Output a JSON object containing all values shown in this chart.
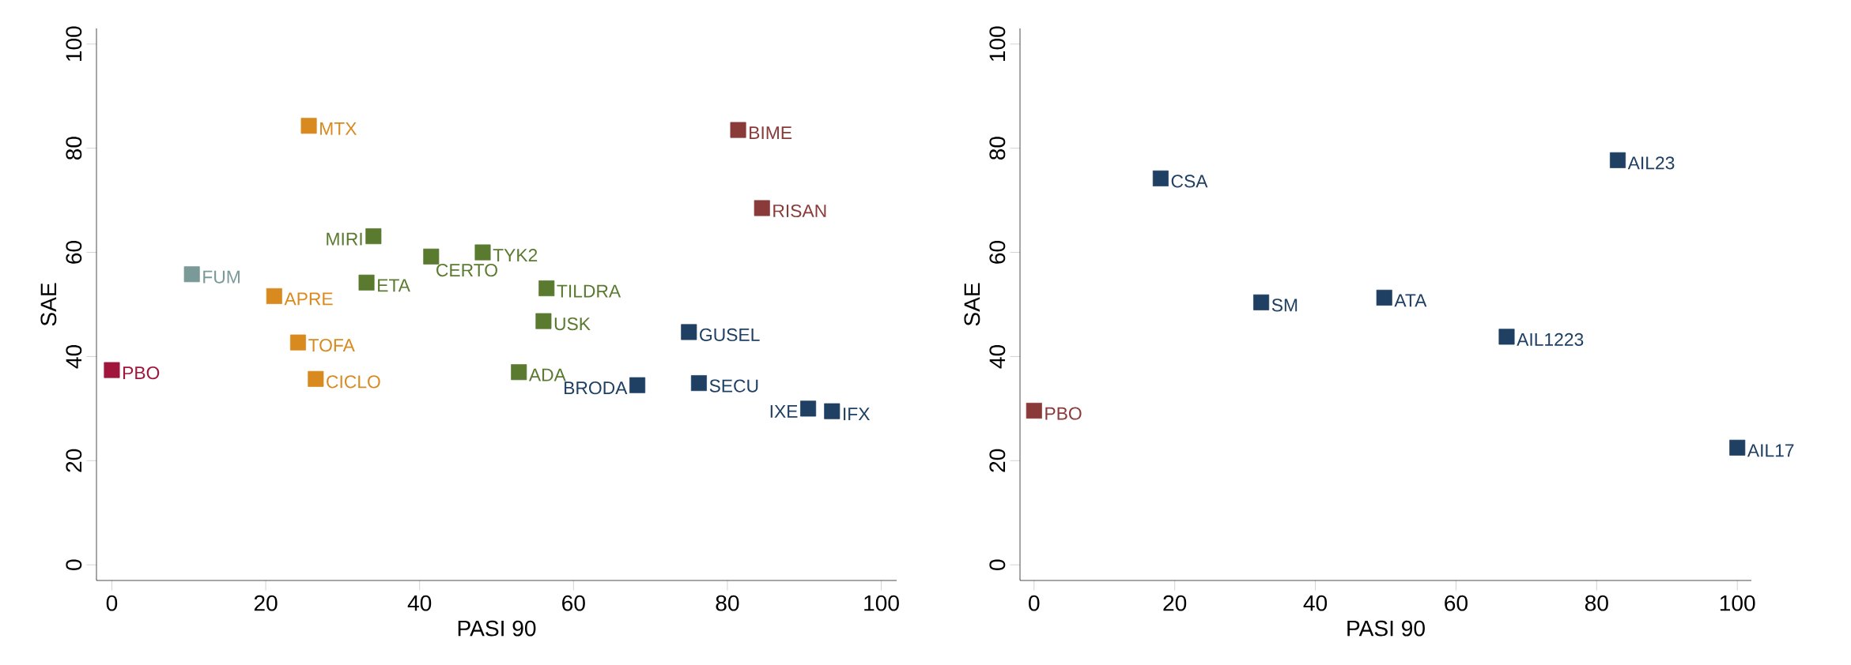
{
  "chart_data": [
    {
      "type": "scatter",
      "xlabel": "PASI 90",
      "ylabel": "SAE",
      "xlim": [
        -2,
        102
      ],
      "ylim": [
        -3,
        103
      ],
      "xticks": [
        0,
        20,
        40,
        60,
        80,
        100
      ],
      "yticks": [
        0,
        20,
        40,
        60,
        80,
        100
      ],
      "marker": "square",
      "series": [
        {
          "name": "PBO",
          "color": "#a0163c",
          "x": [
            0
          ],
          "values": [
            37.4
          ]
        },
        {
          "name": "FUM",
          "color": "#7a9a9a",
          "x": [
            10.4
          ],
          "values": [
            55.8
          ]
        },
        {
          "name": "APRE",
          "color": "#d98a1e",
          "x": [
            21.1
          ],
          "values": [
            51.6
          ]
        },
        {
          "name": "TOFA",
          "color": "#d98a1e",
          "x": [
            24.2
          ],
          "values": [
            42.7
          ]
        },
        {
          "name": "CICLO",
          "color": "#d98a1e",
          "x": [
            26.5
          ],
          "values": [
            35.7
          ]
        },
        {
          "name": "MTX",
          "color": "#d98a1e",
          "x": [
            25.6
          ],
          "values": [
            84.3
          ]
        },
        {
          "name": "ETA",
          "color": "#5a7a30",
          "x": [
            33.1
          ],
          "values": [
            54.2
          ]
        },
        {
          "name": "MIRI",
          "color": "#5a7a30",
          "x": [
            34.0
          ],
          "values": [
            63.1
          ]
        },
        {
          "name": "CERTO",
          "color": "#5a7a30",
          "x": [
            41.5
          ],
          "values": [
            59.2
          ]
        },
        {
          "name": "TYK2",
          "color": "#5a7a30",
          "x": [
            48.2
          ],
          "values": [
            60.0
          ]
        },
        {
          "name": "TILDRA",
          "color": "#5a7a30",
          "x": [
            56.5
          ],
          "values": [
            53.1
          ]
        },
        {
          "name": "USK",
          "color": "#5a7a30",
          "x": [
            56.1
          ],
          "values": [
            46.8
          ]
        },
        {
          "name": "ADA",
          "color": "#5a7a30",
          "x": [
            52.9
          ],
          "values": [
            37.0
          ]
        },
        {
          "name": "BRODA",
          "color": "#1f3f63",
          "x": [
            68.3
          ],
          "values": [
            34.5
          ]
        },
        {
          "name": "SECU",
          "color": "#1f3f63",
          "x": [
            76.3
          ],
          "values": [
            34.9
          ]
        },
        {
          "name": "GUSEL",
          "color": "#1f3f63",
          "x": [
            75.0
          ],
          "values": [
            44.7
          ]
        },
        {
          "name": "IXE",
          "color": "#1f3f63",
          "x": [
            90.5
          ],
          "values": [
            30.0
          ]
        },
        {
          "name": "IFX",
          "color": "#1f3f63",
          "x": [
            93.6
          ],
          "values": [
            29.5
          ]
        },
        {
          "name": "BIME",
          "color": "#8b3a3a",
          "x": [
            81.4
          ],
          "values": [
            83.5
          ]
        },
        {
          "name": "RISAN",
          "color": "#8b3a3a",
          "x": [
            84.5
          ],
          "values": [
            68.5
          ]
        }
      ]
    },
    {
      "type": "scatter",
      "xlabel": "PASI 90",
      "ylabel": "SAE",
      "xlim": [
        -2,
        102
      ],
      "ylim": [
        -3,
        103
      ],
      "xticks": [
        0,
        20,
        40,
        60,
        80,
        100
      ],
      "yticks": [
        0,
        20,
        40,
        60,
        80,
        100
      ],
      "marker": "square",
      "series": [
        {
          "name": "PBO",
          "color": "#8b3a3a",
          "x": [
            0
          ],
          "values": [
            29.6
          ]
        },
        {
          "name": "CSA",
          "color": "#1f3f63",
          "x": [
            18.0
          ],
          "values": [
            74.2
          ]
        },
        {
          "name": "SM",
          "color": "#1f3f63",
          "x": [
            32.3
          ],
          "values": [
            50.4
          ]
        },
        {
          "name": "ATA",
          "color": "#1f3f63",
          "x": [
            49.8
          ],
          "values": [
            51.3
          ]
        },
        {
          "name": "AIL1223",
          "color": "#1f3f63",
          "x": [
            67.2
          ],
          "values": [
            43.8
          ]
        },
        {
          "name": "AIL23",
          "color": "#1f3f63",
          "x": [
            83.0
          ],
          "values": [
            77.7
          ]
        },
        {
          "name": "AIL17",
          "color": "#1f3f63",
          "x": [
            100
          ],
          "values": [
            22.5
          ]
        }
      ]
    }
  ]
}
